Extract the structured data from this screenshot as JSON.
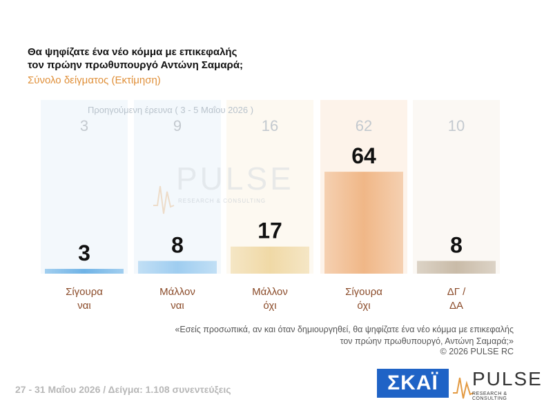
{
  "header": {
    "title_line1": "Θα ψηφίζατε ένα νέο κόμμα με επικεφαλής",
    "title_line2": "τον πρώην πρωθυπουργό Αντώνη Σαμαρά;",
    "subtitle": "Σύνολο δείγματος (Εκτίμηση)"
  },
  "previous_caption": "Προηγούμενη έρευνα ( 3 - 5 Μαΐου 2026 )",
  "watermark": {
    "word": "PULSE",
    "sub": "RESEARCH & CONSULTING"
  },
  "chart_data": {
    "type": "bar",
    "categories": [
      {
        "line1": "Σίγουρα",
        "line2": "ναι"
      },
      {
        "line1": "Μάλλον",
        "line2": "ναι"
      },
      {
        "line1": "Μάλλον",
        "line2": "όχι"
      },
      {
        "line1": "Σίγουρα",
        "line2": "όχι"
      },
      {
        "line1": "ΔΓ /",
        "line2": "ΔΑ"
      }
    ],
    "series": [
      {
        "values": [
          3,
          8,
          17,
          64,
          8
        ]
      },
      {
        "name": "Προηγούμενη έρευνα ( 3 - 5 Μαΐου 2026 )",
        "values": [
          3,
          9,
          16,
          62,
          10
        ]
      }
    ],
    "colors": [
      "#6fb3e6",
      "#9fcdf0",
      "#f0d9a6",
      "#f0b787",
      "#c9bba8"
    ],
    "background_colors": [
      "#f3f8fc",
      "#f3f8fc",
      "#fdf9f1",
      "#fdf3ea",
      "#fbf8f4"
    ],
    "ylim": [
      0,
      100
    ]
  },
  "quote_line1": "«Εσείς προσωπικά, αν και όταν δημιουργηθεί, θα ψηφίζατε ένα νέο κόμμα με επικεφαλής",
  "quote_line2": "τον πρώην πρωθυπουργό, Αντώνη Σαμαρά;»",
  "copyright": "©  2026  PULSE RC",
  "footer": "27 - 31  Μαΐου 2026  /  Δείγμα:  1.108 συνεντεύξεις",
  "logos": {
    "skai": "ΣΚΑΪ",
    "pulse_word": "PULSE",
    "pulse_sub": "RESEARCH & CONSULTING"
  }
}
